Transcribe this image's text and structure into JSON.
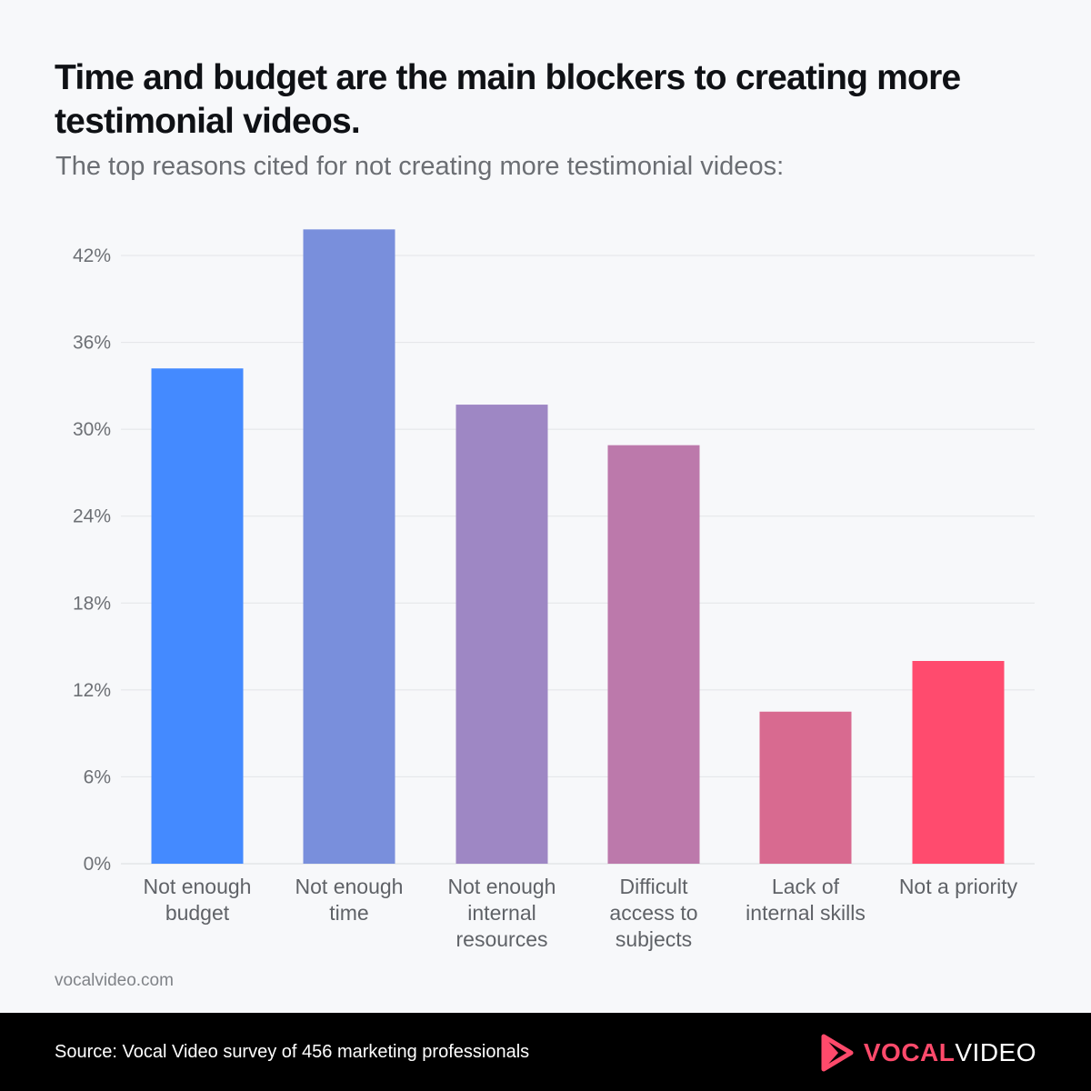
{
  "header": {
    "title": "Time and budget are the main blockers to creating more testimonial videos.",
    "subtitle": "The top reasons cited for not creating more testimonial videos:"
  },
  "chart_data": {
    "type": "bar",
    "title": "Time and budget are the main blockers to creating more testimonial videos.",
    "subtitle": "The top reasons cited for not creating more testimonial videos:",
    "categories": [
      [
        "Not enough",
        "budget"
      ],
      [
        "Not enough",
        "time"
      ],
      [
        "Not enough",
        "internal",
        "resources"
      ],
      [
        "Difficult",
        "access to",
        "subjects"
      ],
      [
        "Lack of",
        "internal skills"
      ],
      [
        "Not a priority"
      ]
    ],
    "values": [
      34.2,
      43.8,
      31.7,
      28.9,
      10.5,
      14.0
    ],
    "colors": [
      "#448aff",
      "#798fdc",
      "#9e87c4",
      "#bc79ab",
      "#d86a90",
      "#ff4b6e"
    ],
    "yticks": [
      "0%",
      "6%",
      "12%",
      "18%",
      "24%",
      "30%",
      "36%",
      "42%"
    ],
    "ylim": [
      0,
      42
    ],
    "grid": true,
    "xlabel": "",
    "ylabel": ""
  },
  "site": "vocalvideo.com",
  "footer": {
    "source": "Source: Vocal Video survey of 456 marketing professionals",
    "logo_part1": "VOCAL",
    "logo_part2": "VIDEO",
    "logo_color": "#ff4a6b",
    "logo_icon": "play-triangle-icon"
  }
}
